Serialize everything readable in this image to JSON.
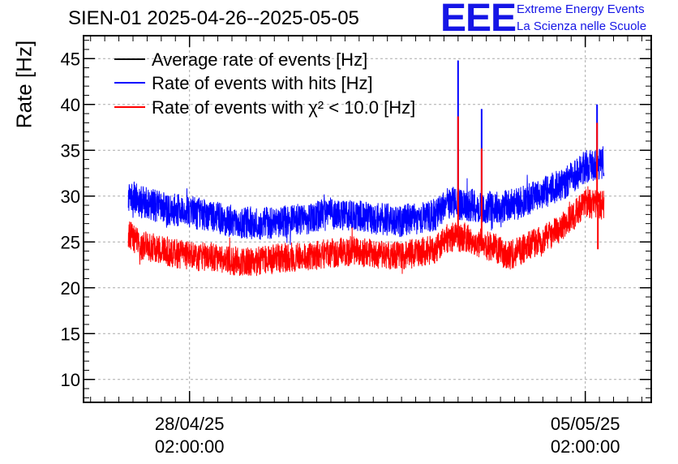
{
  "header": {
    "title": "SIEN-01 2025-04-26--2025-05-05",
    "logo_text": "EEE",
    "logo_line1": "Extreme Energy Events",
    "logo_line2": "La Scienza nelle Scuole",
    "logo_color": "#1515e6"
  },
  "chart_data": {
    "type": "line",
    "title": "SIEN-01 2025-04-26--2025-05-05",
    "ylabel": "Rate [Hz]",
    "xlabel": "",
    "ylim": [
      7.5,
      47.5
    ],
    "yticks": [
      10,
      15,
      20,
      25,
      30,
      35,
      40,
      45
    ],
    "grid": true,
    "x_unit": "hours since 2025-04-26 00:00",
    "xlim": [
      5,
      246
    ],
    "x_start": 24,
    "x_end": 226,
    "x_ticks": [
      {
        "x": 50,
        "date": "28/04/25",
        "time": "02:00:00"
      },
      {
        "x": 218,
        "date": "05/05/25",
        "time": "02:00:00"
      }
    ],
    "legend_position": "top-left",
    "series": [
      {
        "name": "Average rate of events [Hz]",
        "color": "#000000",
        "noise": 0,
        "points": []
      },
      {
        "name": "Rate of events with hits [Hz]",
        "color": "#0000ff",
        "noise": 2.2,
        "points": [
          [
            24,
            30.2
          ],
          [
            30,
            29.3
          ],
          [
            40,
            28.6
          ],
          [
            50,
            28.3
          ],
          [
            60,
            27.7
          ],
          [
            70,
            27.2
          ],
          [
            80,
            27.0
          ],
          [
            90,
            27.2
          ],
          [
            100,
            27.5
          ],
          [
            110,
            28.1
          ],
          [
            120,
            28.0
          ],
          [
            130,
            27.5
          ],
          [
            140,
            27.3
          ],
          [
            150,
            27.7
          ],
          [
            155,
            28.0
          ],
          [
            160,
            29.3
          ],
          [
            170,
            29.0
          ],
          [
            180,
            28.7
          ],
          [
            190,
            29.2
          ],
          [
            200,
            30.3
          ],
          [
            210,
            31.5
          ],
          [
            218,
            33.2
          ],
          [
            226,
            33.7
          ]
        ],
        "spikes": [
          [
            164,
            44.8
          ],
          [
            174,
            39.5
          ],
          [
            223,
            40.0
          ]
        ]
      },
      {
        "name": "Rate of events with χ² < 10.0 [Hz]",
        "color": "#ff0000",
        "noise": 2.0,
        "points": [
          [
            24,
            25.8
          ],
          [
            30,
            24.5
          ],
          [
            40,
            24.0
          ],
          [
            50,
            23.4
          ],
          [
            60,
            23.3
          ],
          [
            70,
            22.9
          ],
          [
            80,
            22.9
          ],
          [
            90,
            23.3
          ],
          [
            100,
            23.3
          ],
          [
            110,
            23.8
          ],
          [
            120,
            24.0
          ],
          [
            130,
            23.6
          ],
          [
            140,
            23.5
          ],
          [
            150,
            24.0
          ],
          [
            155,
            24.3
          ],
          [
            160,
            25.6
          ],
          [
            170,
            25.2
          ],
          [
            180,
            24.3
          ],
          [
            185,
            23.4
          ],
          [
            190,
            24.0
          ],
          [
            200,
            25.3
          ],
          [
            210,
            27.0
          ],
          [
            218,
            29.2
          ],
          [
            226,
            29.0
          ]
        ],
        "spikes": [
          [
            164,
            38.7
          ],
          [
            174,
            35.2
          ],
          [
            223,
            38.0
          ]
        ],
        "dips": [
          [
            223,
            24.2
          ]
        ]
      }
    ]
  }
}
